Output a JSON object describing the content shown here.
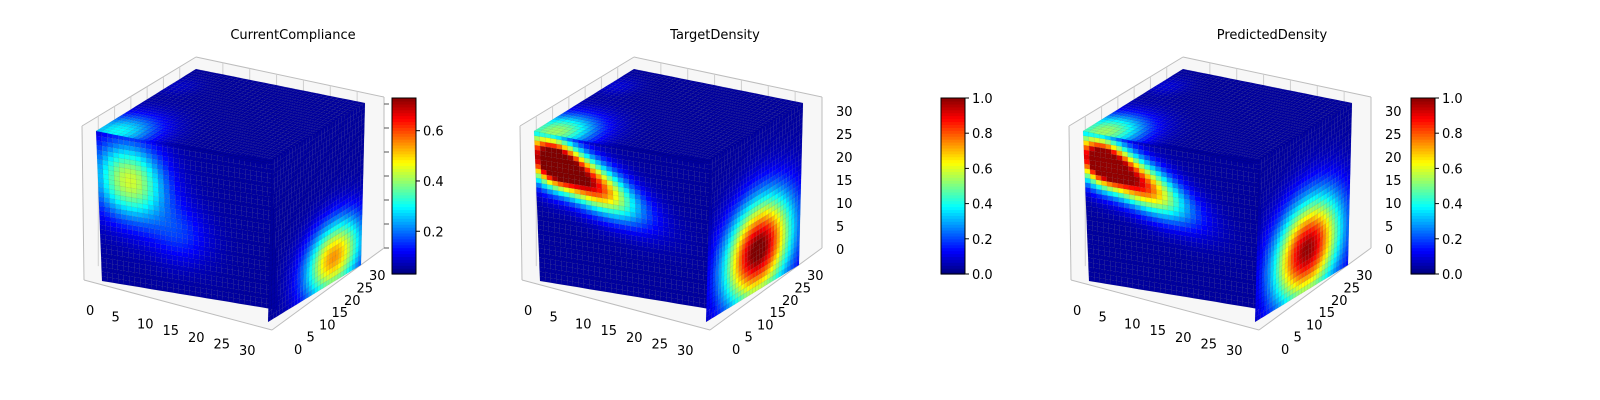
{
  "chart_data": [
    {
      "type": "heatmap",
      "title": "CurrentCompliance",
      "projection": "3d",
      "grid": true,
      "x_ticks": [
        "0",
        "5",
        "10",
        "15",
        "20",
        "25",
        "30"
      ],
      "y_ticks": [
        "0",
        "5",
        "10",
        "15",
        "20",
        "25",
        "30"
      ],
      "z_ticks": [],
      "xlim": [
        0,
        32
      ],
      "ylim": [
        0,
        32
      ],
      "zlim": [
        0,
        32
      ],
      "colorbar": {
        "range": [
          0.03,
          0.73
        ],
        "ticks": [
          "0.2",
          "0.4",
          "0.6"
        ],
        "tick_values": [
          0.2,
          0.4,
          0.6
        ]
      },
      "front_peak": 0.55,
      "side_peak": 0.7,
      "colormap": "jet"
    },
    {
      "type": "heatmap",
      "title": "TargetDensity",
      "projection": "3d",
      "grid": true,
      "x_ticks": [
        "0",
        "5",
        "10",
        "15",
        "20",
        "25",
        "30"
      ],
      "y_ticks": [
        "0",
        "5",
        "10",
        "15",
        "20",
        "25",
        "30"
      ],
      "z_ticks": [
        "0",
        "5",
        "10",
        "15",
        "20",
        "25",
        "30"
      ],
      "xlim": [
        0,
        32
      ],
      "ylim": [
        0,
        32
      ],
      "zlim": [
        0,
        32
      ],
      "colorbar": {
        "range": [
          0,
          1
        ],
        "ticks": [
          "0.0",
          "0.2",
          "0.4",
          "0.6",
          "0.8",
          "1.0"
        ],
        "tick_values": [
          0,
          0.2,
          0.4,
          0.6,
          0.8,
          1.0
        ]
      },
      "front_peak": 1.0,
      "side_peak": 1.0,
      "colormap": "jet"
    },
    {
      "type": "heatmap",
      "title": "PredictedDensity",
      "projection": "3d",
      "grid": true,
      "x_ticks": [
        "0",
        "5",
        "10",
        "15",
        "20",
        "25",
        "30"
      ],
      "y_ticks": [
        "0",
        "5",
        "10",
        "15",
        "20",
        "25",
        "30"
      ],
      "z_ticks": [
        "0",
        "5",
        "10",
        "15",
        "20",
        "25",
        "30"
      ],
      "xlim": [
        0,
        32
      ],
      "ylim": [
        0,
        32
      ],
      "zlim": [
        0,
        32
      ],
      "colorbar": {
        "range": [
          0,
          1
        ],
        "ticks": [
          "0.0",
          "0.2",
          "0.4",
          "0.6",
          "0.8",
          "1.0"
        ],
        "tick_values": [
          0,
          0.2,
          0.4,
          0.6,
          0.8,
          1.0
        ]
      },
      "front_peak": 0.95,
      "side_peak": 0.95,
      "colormap": "jet"
    }
  ]
}
